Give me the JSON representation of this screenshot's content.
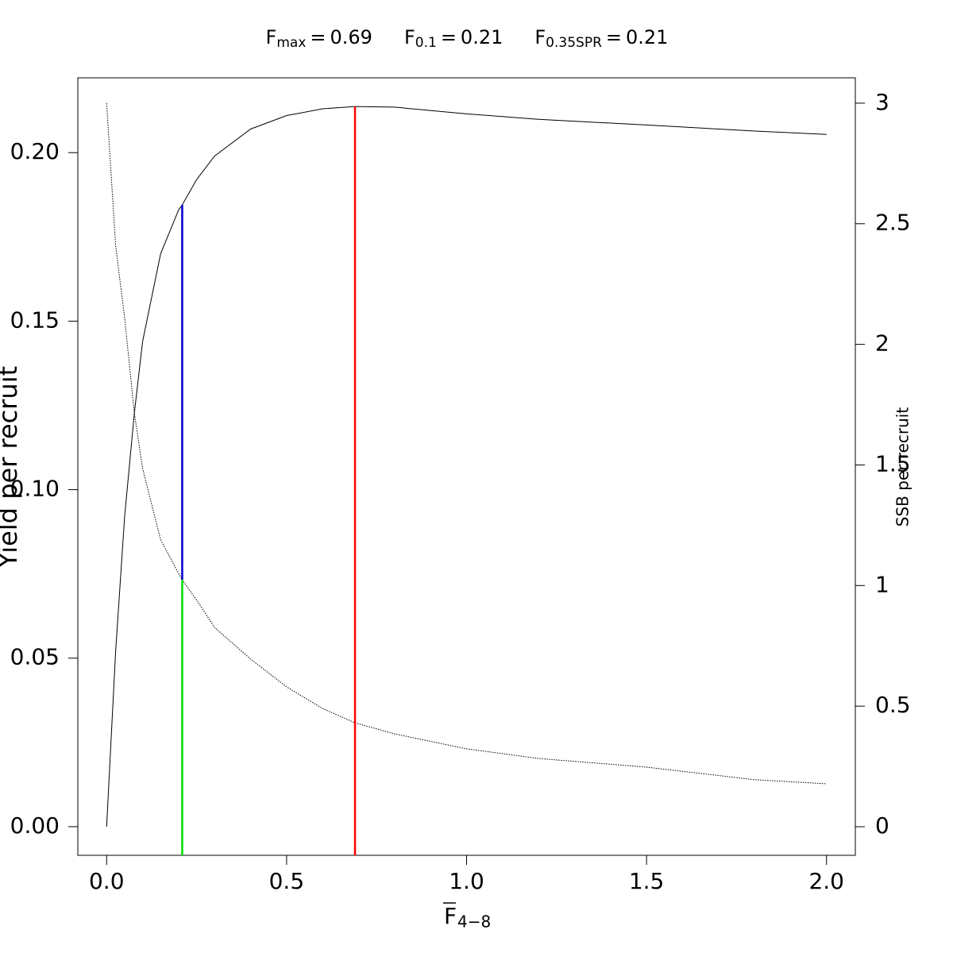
{
  "chart_data": {
    "type": "line",
    "references": [
      {
        "name": "F",
        "subscript": "max",
        "relation": "=",
        "value": 0.69,
        "color": "#ff0000"
      },
      {
        "name": "F",
        "subscript": "0.1",
        "relation": "=",
        "value": 0.21,
        "color": "#0000cc"
      },
      {
        "name": "F",
        "subscript": "0.35SPR",
        "relation": "=",
        "value": 0.21,
        "color": "#00dd00"
      }
    ],
    "xlabel": {
      "text": "F",
      "subscript": "4−8"
    },
    "ylabel": "Yield per recruit",
    "y2label": "SSB per recruit",
    "x": [
      0,
      0.025,
      0.05,
      0.077,
      0.1,
      0.15,
      0.2,
      0.21,
      0.25,
      0.3,
      0.4,
      0.5,
      0.6,
      0.69,
      0.8,
      1.0,
      1.2,
      1.5,
      1.8,
      2.0
    ],
    "series": [
      {
        "name": "Yield per recruit",
        "axis": "y",
        "color": "#000000",
        "line_style": "solid",
        "values": [
          0,
          0.052,
          0.092,
          0.1227,
          0.144,
          0.17,
          0.183,
          0.1845,
          0.192,
          0.199,
          0.207,
          0.211,
          0.213,
          0.2137,
          0.2135,
          0.2115,
          0.2099,
          0.2082,
          0.2064,
          0.2054
        ]
      },
      {
        "name": "SSB per recruit",
        "axis": "y2",
        "color": "#000000",
        "line_style": "dotted",
        "values": [
          3.0,
          2.41,
          2.11,
          1.715,
          1.485,
          1.19,
          1.05,
          1.024,
          0.94,
          0.826,
          0.695,
          0.58,
          0.49,
          0.431,
          0.385,
          0.323,
          0.283,
          0.247,
          0.195,
          0.178
        ]
      }
    ],
    "xlim": [
      -0.08,
      2.08
    ],
    "ylim": [
      -0.0085,
      0.2222
    ],
    "y2lim": [
      -0.1185,
      3.105
    ],
    "xticks": [
      {
        "value": 0,
        "label": "0.0"
      },
      {
        "value": 0.5,
        "label": "0.5"
      },
      {
        "value": 1,
        "label": "1.0"
      },
      {
        "value": 1.5,
        "label": "1.5"
      },
      {
        "value": 2,
        "label": "2.0"
      }
    ],
    "yticks": [
      {
        "value": 0,
        "label": "0.00"
      },
      {
        "value": 0.05,
        "label": "0.05"
      },
      {
        "value": 0.1,
        "label": "0.10"
      },
      {
        "value": 0.15,
        "label": "0.15"
      },
      {
        "value": 0.2,
        "label": "0.20"
      }
    ],
    "y2ticks": [
      0,
      0.5,
      1,
      1.5,
      2,
      2.5,
      3
    ]
  }
}
